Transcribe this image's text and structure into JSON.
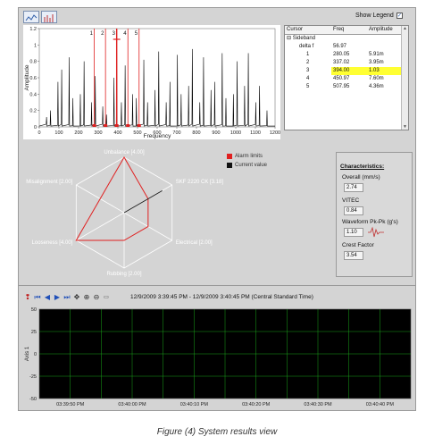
{
  "toolbar": {
    "show_legend_label": "Show Legend",
    "show_legend_checked": true
  },
  "spectrum": {
    "xlabel": "Frequency",
    "ylabel": "Amplitude",
    "x_ticks": [
      "0",
      "100",
      "200",
      "300",
      "400",
      "500",
      "600",
      "700",
      "800",
      "900",
      "1000",
      "1100",
      "1200"
    ],
    "y_ticks": [
      "0",
      "0.2",
      "0.4",
      "0.6",
      "0.8",
      "1",
      "1.2"
    ],
    "cursor_labels": [
      "1",
      "2",
      "3",
      "4",
      "5"
    ],
    "cursor_freqs": [
      280.05,
      337.02,
      394.0,
      450.97,
      507.95
    ],
    "cursor_color": "#e02020",
    "trace_color": "#000000"
  },
  "cursor_table": {
    "headers": [
      "Cursor",
      "Freq",
      "Amplitude"
    ],
    "group_label": "Sideband",
    "rows": [
      {
        "cursor": "delta f",
        "freq": "56.97",
        "amp": "",
        "highlight": false
      },
      {
        "cursor": "1",
        "freq": "280.05",
        "amp": "5.91m",
        "highlight": false
      },
      {
        "cursor": "2",
        "freq": "337.02",
        "amp": "3.95m",
        "highlight": false
      },
      {
        "cursor": "3",
        "freq": "394.00",
        "amp": "1.03",
        "highlight": true
      },
      {
        "cursor": "4",
        "freq": "450.97",
        "amp": "7.60m",
        "highlight": false
      },
      {
        "cursor": "5",
        "freq": "507.95",
        "amp": "4.36m",
        "highlight": false
      }
    ],
    "highlight_color": "#ffff33"
  },
  "radar": {
    "axes": [
      "Unbalance [4.00]",
      "SKF 2220 CK [3.18]",
      "Electrical [2.00]",
      "Rubbing [2.00]",
      "Looseness [4.00]",
      "Misalignment [2.00]"
    ],
    "max": 4,
    "alarm_values": [
      4.0,
      2.0,
      2.0,
      2.0,
      4.0,
      2.0
    ],
    "current_values": [
      0,
      3.18,
      0,
      0,
      0,
      0
    ],
    "legend_alarm": "Alarm limits",
    "legend_current": "Current value",
    "alarm_color": "#e02020",
    "current_color": "#111111"
  },
  "characteristics": {
    "title": "Characteristics:",
    "items": [
      {
        "label": "Overall (mm/s)",
        "value": "2.74"
      },
      {
        "label": "VITEC",
        "value": "0.84"
      },
      {
        "label": "Waveform Pk-Pk (g's)",
        "value": "1.10"
      },
      {
        "label": "Crest Factor",
        "value": "3.54"
      }
    ]
  },
  "time_range": "12/9/2009 3:39:45 PM - 12/9/2009 3:40:45 PM (Central Standard Time)",
  "strip_chart": {
    "ylabel": "Axis 1",
    "y_ticks": [
      "50",
      "25",
      "0",
      "-25",
      "-50"
    ],
    "x_ticks": [
      "03:39:50 PM",
      "03:40:00 PM",
      "03:40:10 PM",
      "03:40:20 PM",
      "03:40:30 PM",
      "03:40:40 PM"
    ],
    "background": "#000000",
    "grid_color": "#1aa31a"
  },
  "caption": "Figure (4) System results view"
}
